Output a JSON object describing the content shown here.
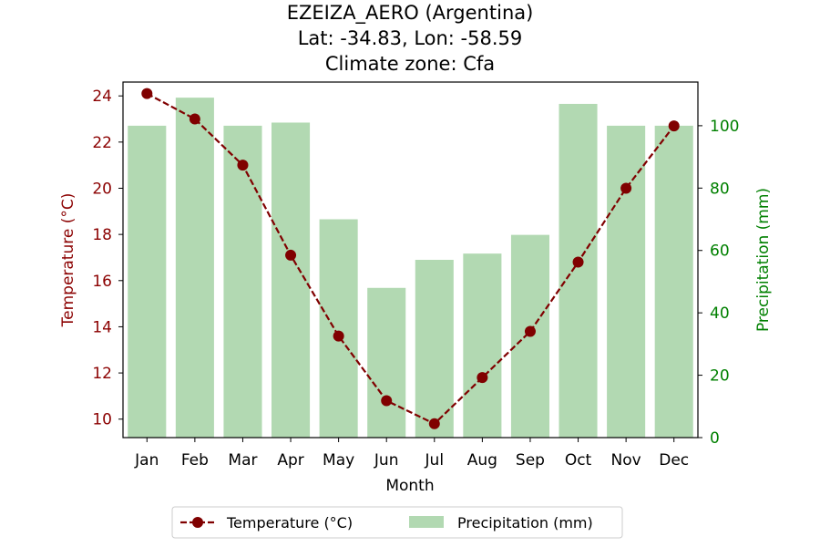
{
  "chart_data": {
    "type": "bar+line",
    "title_lines": [
      "EZEIZA_AERO (Argentina)",
      "Lat: -34.83, Lon: -58.59",
      "Climate zone: Cfa"
    ],
    "xlabel": "Month",
    "ylabel_left": "Temperature (°C)",
    "ylabel_right": "Precipitation (mm)",
    "categories": [
      "Jan",
      "Feb",
      "Mar",
      "Apr",
      "May",
      "Jun",
      "Jul",
      "Aug",
      "Sep",
      "Oct",
      "Nov",
      "Dec"
    ],
    "temperature": {
      "name": "Temperature (°C)",
      "values": [
        24.1,
        23.0,
        21.0,
        17.1,
        13.6,
        10.8,
        9.8,
        11.8,
        13.8,
        16.8,
        20.0,
        22.7
      ],
      "color": "#800000"
    },
    "precipitation": {
      "name": "Precipitation (mm)",
      "values": [
        100,
        109,
        100,
        101,
        70,
        48,
        57,
        59,
        65,
        107,
        100,
        100
      ],
      "color": "#b2d9b2"
    },
    "ylim_left": [
      9.2,
      24.6
    ],
    "ylim_right": [
      0,
      114
    ],
    "yticks_left": [
      10,
      12,
      14,
      16,
      18,
      20,
      22,
      24
    ],
    "yticks_right": [
      0,
      20,
      40,
      60,
      80,
      100
    ],
    "left_axis_color": "#8b0000",
    "right_axis_color": "#008000",
    "legend_placement": "bottom-center"
  }
}
